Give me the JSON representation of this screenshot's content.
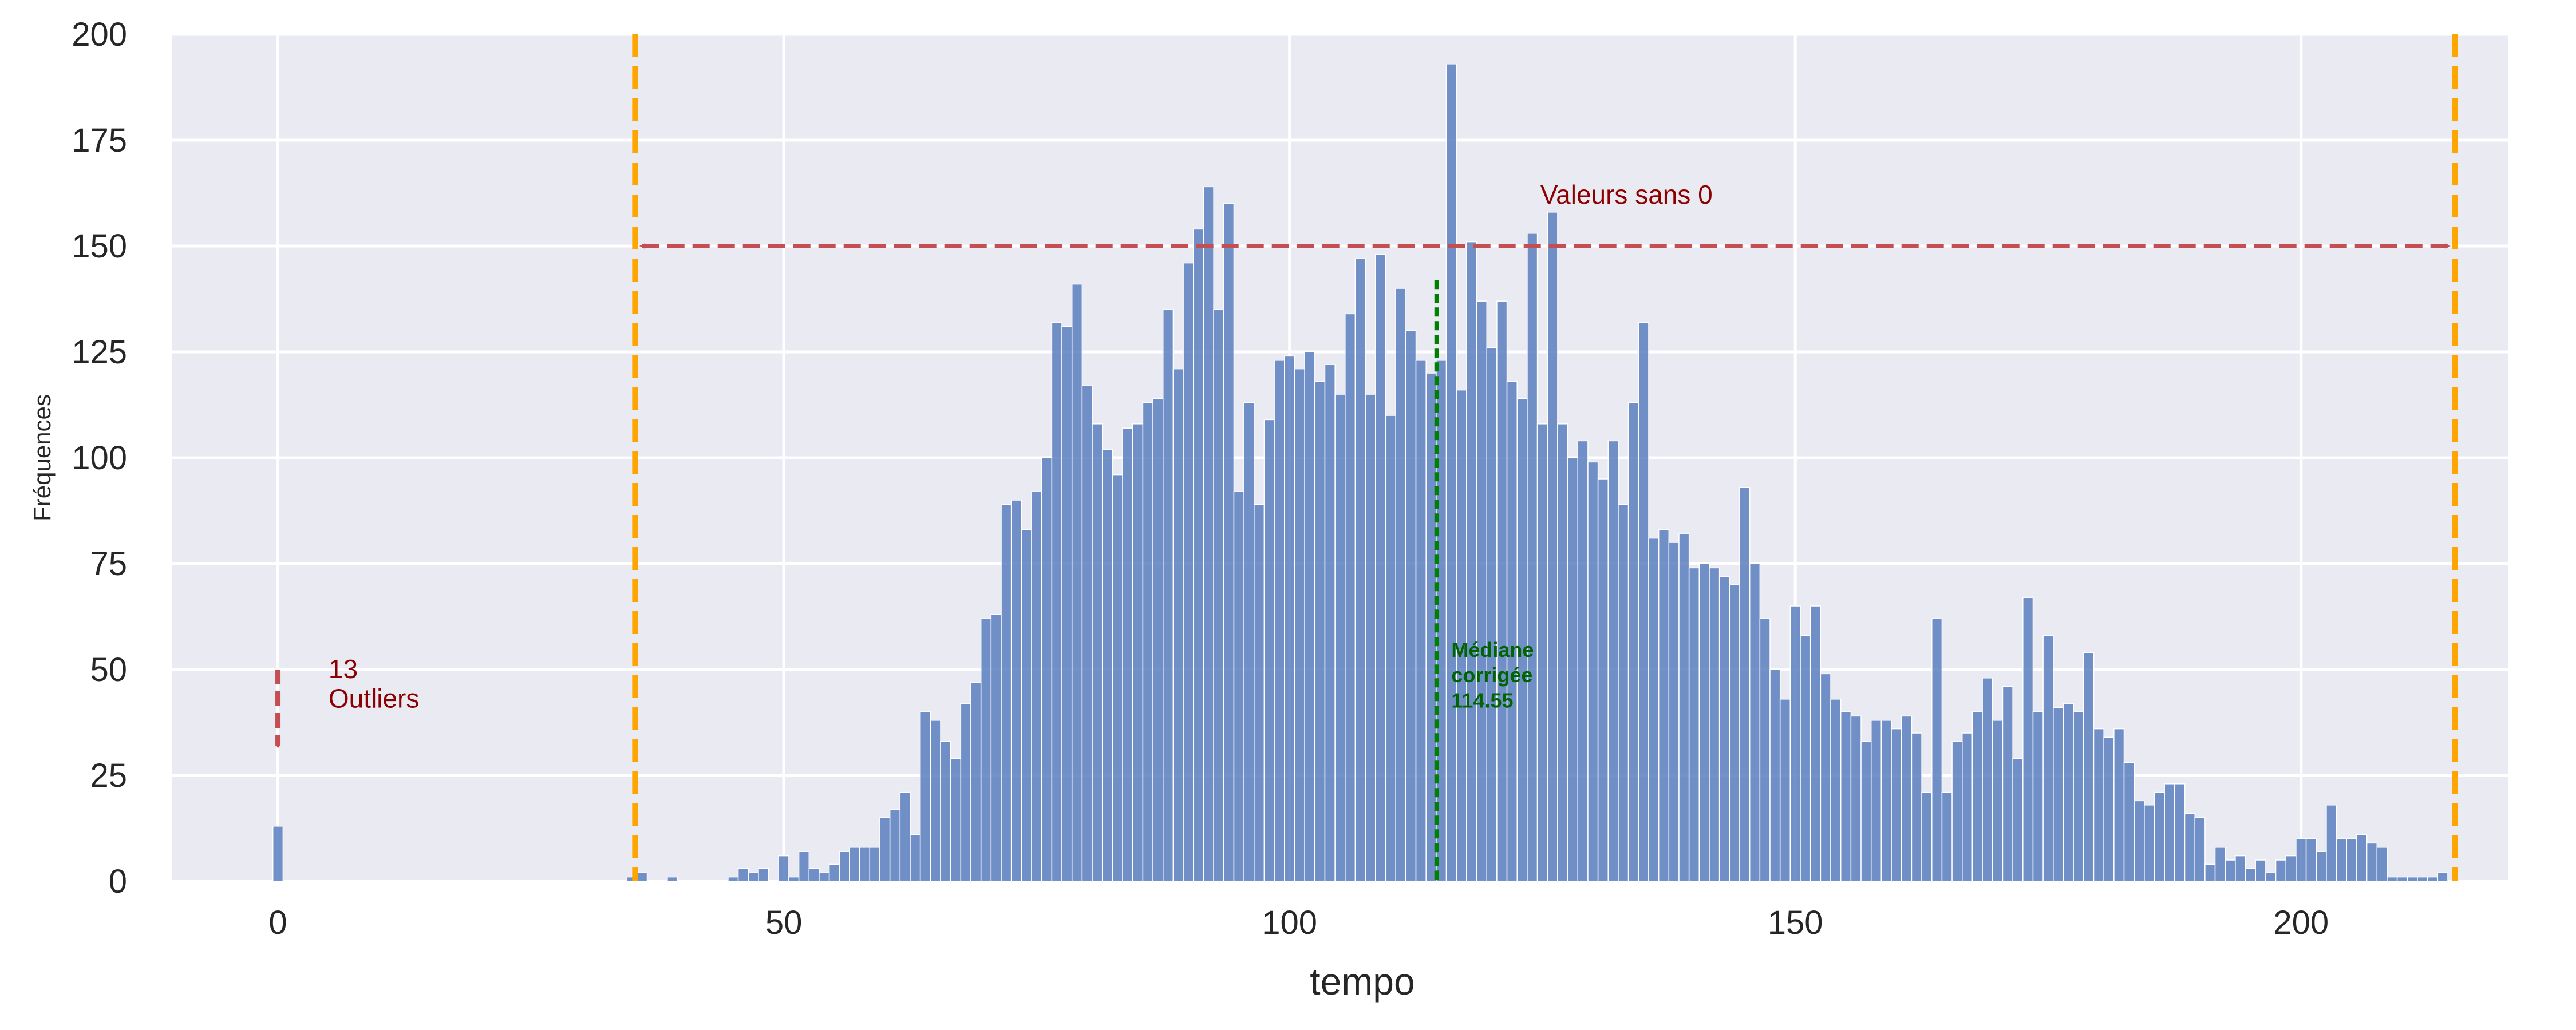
{
  "chart_data": {
    "type": "bar",
    "xlabel": "tempo",
    "ylabel": "Fréquences",
    "xlim": [
      -10.5,
      220.5
    ],
    "ylim": [
      0,
      200
    ],
    "xticks": [
      0,
      50,
      100,
      150,
      200
    ],
    "yticks": [
      0,
      25,
      50,
      75,
      100,
      125,
      150,
      175,
      200
    ],
    "grid": true,
    "bin_width": 1,
    "bars": [
      [
        0,
        13
      ],
      [
        35,
        1
      ],
      [
        36,
        2
      ],
      [
        39,
        1
      ],
      [
        45,
        1
      ],
      [
        46,
        3
      ],
      [
        47,
        2
      ],
      [
        48,
        3
      ],
      [
        50,
        6
      ],
      [
        51,
        1
      ],
      [
        52,
        7
      ],
      [
        53,
        3
      ],
      [
        54,
        2
      ],
      [
        55,
        4
      ],
      [
        56,
        7
      ],
      [
        57,
        8
      ],
      [
        58,
        8
      ],
      [
        59,
        8
      ],
      [
        60,
        15
      ],
      [
        61,
        17
      ],
      [
        62,
        21
      ],
      [
        63,
        11
      ],
      [
        64,
        40
      ],
      [
        65,
        38
      ],
      [
        66,
        33
      ],
      [
        67,
        29
      ],
      [
        68,
        42
      ],
      [
        69,
        47
      ],
      [
        70,
        62
      ],
      [
        71,
        63
      ],
      [
        72,
        89
      ],
      [
        73,
        90
      ],
      [
        74,
        83
      ],
      [
        75,
        92
      ],
      [
        76,
        100
      ],
      [
        77,
        132
      ],
      [
        78,
        131
      ],
      [
        79,
        141
      ],
      [
        80,
        117
      ],
      [
        81,
        108
      ],
      [
        82,
        102
      ],
      [
        83,
        96
      ],
      [
        84,
        107
      ],
      [
        85,
        108
      ],
      [
        86,
        113
      ],
      [
        87,
        114
      ],
      [
        88,
        135
      ],
      [
        89,
        121
      ],
      [
        90,
        146
      ],
      [
        91,
        154
      ],
      [
        92,
        164
      ],
      [
        93,
        135
      ],
      [
        94,
        160
      ],
      [
        95,
        92
      ],
      [
        96,
        113
      ],
      [
        97,
        89
      ],
      [
        98,
        109
      ],
      [
        99,
        123
      ],
      [
        100,
        124
      ],
      [
        101,
        121
      ],
      [
        102,
        125
      ],
      [
        103,
        118
      ],
      [
        104,
        122
      ],
      [
        105,
        115
      ],
      [
        106,
        134
      ],
      [
        107,
        147
      ],
      [
        108,
        115
      ],
      [
        109,
        148
      ],
      [
        110,
        110
      ],
      [
        111,
        140
      ],
      [
        112,
        130
      ],
      [
        113,
        123
      ],
      [
        114,
        120
      ],
      [
        115,
        123
      ],
      [
        116,
        193
      ],
      [
        117,
        116
      ],
      [
        118,
        151
      ],
      [
        119,
        137
      ],
      [
        120,
        126
      ],
      [
        121,
        137
      ],
      [
        122,
        118
      ],
      [
        123,
        114
      ],
      [
        124,
        153
      ],
      [
        125,
        108
      ],
      [
        126,
        158
      ],
      [
        127,
        108
      ],
      [
        128,
        100
      ],
      [
        129,
        104
      ],
      [
        130,
        99
      ],
      [
        131,
        95
      ],
      [
        132,
        104
      ],
      [
        133,
        89
      ],
      [
        134,
        113
      ],
      [
        135,
        132
      ],
      [
        136,
        81
      ],
      [
        137,
        83
      ],
      [
        138,
        80
      ],
      [
        139,
        82
      ],
      [
        140,
        74
      ],
      [
        141,
        75
      ],
      [
        142,
        74
      ],
      [
        143,
        72
      ],
      [
        144,
        70
      ],
      [
        145,
        93
      ],
      [
        146,
        75
      ],
      [
        147,
        62
      ],
      [
        148,
        50
      ],
      [
        149,
        43
      ],
      [
        150,
        65
      ],
      [
        151,
        58
      ],
      [
        152,
        65
      ],
      [
        153,
        49
      ],
      [
        154,
        43
      ],
      [
        155,
        40
      ],
      [
        156,
        39
      ],
      [
        157,
        33
      ],
      [
        158,
        38
      ],
      [
        159,
        38
      ],
      [
        160,
        36
      ],
      [
        161,
        39
      ],
      [
        162,
        35
      ],
      [
        163,
        21
      ],
      [
        164,
        62
      ],
      [
        165,
        21
      ],
      [
        166,
        33
      ],
      [
        167,
        35
      ],
      [
        168,
        40
      ],
      [
        169,
        48
      ],
      [
        170,
        38
      ],
      [
        171,
        46
      ],
      [
        172,
        29
      ],
      [
        173,
        67
      ],
      [
        174,
        40
      ],
      [
        175,
        58
      ],
      [
        176,
        41
      ],
      [
        177,
        42
      ],
      [
        178,
        40
      ],
      [
        179,
        54
      ],
      [
        180,
        36
      ],
      [
        181,
        34
      ],
      [
        182,
        36
      ],
      [
        183,
        28
      ],
      [
        184,
        19
      ],
      [
        185,
        18
      ],
      [
        186,
        21
      ],
      [
        187,
        23
      ],
      [
        188,
        23
      ],
      [
        189,
        16
      ],
      [
        190,
        15
      ],
      [
        191,
        4
      ],
      [
        192,
        8
      ],
      [
        193,
        5
      ],
      [
        194,
        6
      ],
      [
        195,
        3
      ],
      [
        196,
        5
      ],
      [
        197,
        2
      ],
      [
        198,
        5
      ],
      [
        199,
        6
      ],
      [
        200,
        10
      ],
      [
        201,
        10
      ],
      [
        202,
        7
      ],
      [
        203,
        18
      ],
      [
        204,
        10
      ],
      [
        205,
        10
      ],
      [
        206,
        11
      ],
      [
        207,
        9
      ],
      [
        208,
        8
      ],
      [
        209,
        1
      ],
      [
        210,
        1
      ],
      [
        211,
        1
      ],
      [
        212,
        1
      ],
      [
        213,
        1
      ],
      [
        214,
        2
      ]
    ],
    "vlines": [
      {
        "x": 35.3,
        "color": "#ffa500",
        "style": "dashed"
      },
      {
        "x": 215.2,
        "color": "#ffa500",
        "style": "dashed"
      },
      {
        "x": 114.55,
        "ymax": 142,
        "color": "#008000",
        "style": "dotted"
      }
    ],
    "range_arrow": {
      "from": 36,
      "to": 214.5,
      "y": 150,
      "color": "#c44e52",
      "label": "Valeurs sans 0"
    },
    "outlier_arrow": {
      "x": 0,
      "from": 50,
      "to": 32,
      "color": "#c44e52",
      "label_line1": "13",
      "label_line2": "Outliers"
    },
    "median_label": {
      "line1": "Médiane",
      "line2": "corrigée",
      "line3": "114.55",
      "color": "#006400"
    },
    "colors": {
      "bar": "#5b7fbf",
      "background": "#eaeaf2",
      "grid": "#ffffff",
      "annotation": "#8b0000"
    }
  }
}
